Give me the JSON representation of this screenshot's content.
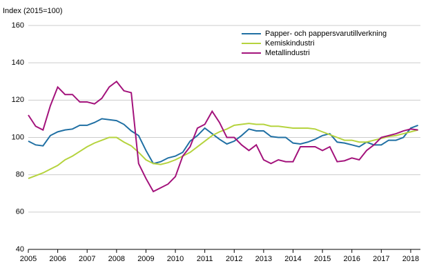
{
  "chart_data": {
    "type": "line",
    "ylabel": "Index (2015=100)",
    "x": [
      2005,
      2005.25,
      2005.5,
      2005.75,
      2006,
      2006.25,
      2006.5,
      2006.75,
      2007,
      2007.25,
      2007.5,
      2007.75,
      2008,
      2008.25,
      2008.5,
      2008.75,
      2009,
      2009.25,
      2009.5,
      2009.75,
      2010,
      2010.25,
      2010.5,
      2010.75,
      2011,
      2011.25,
      2011.5,
      2011.75,
      2012,
      2012.25,
      2012.5,
      2012.75,
      2013,
      2013.25,
      2013.5,
      2013.75,
      2014,
      2014.25,
      2014.5,
      2014.75,
      2015,
      2015.25,
      2015.5,
      2015.75,
      2016,
      2016.25,
      2016.5,
      2016.75,
      2017,
      2017.25,
      2017.5,
      2017.75,
      2018,
      2018.25
    ],
    "series": [
      {
        "name": "Papper- och pappersvarutillverkning",
        "color": "#1f6fa3",
        "values": [
          98,
          96,
          95.5,
          101,
          103,
          104,
          104.5,
          106.5,
          106.5,
          108,
          110,
          109.5,
          109,
          107,
          103.5,
          101,
          93,
          86,
          87,
          89,
          90,
          92,
          98,
          101,
          105,
          102,
          99,
          96.5,
          98,
          101,
          104.5,
          103.5,
          103.5,
          100.5,
          100,
          100,
          97,
          96.5,
          97.5,
          99,
          101,
          102,
          97.5,
          97,
          96,
          95,
          97.5,
          96,
          96,
          98.5,
          98.5,
          100,
          105,
          106.5
        ]
      },
      {
        "name": "Kemiskindustri",
        "color": "#b5d33d",
        "values": [
          78,
          79.5,
          81,
          83,
          85,
          88,
          90,
          92.5,
          95,
          97,
          98.5,
          100,
          100,
          97.5,
          95.5,
          92,
          88,
          86,
          85.5,
          86.5,
          88,
          90,
          92,
          95,
          98,
          101,
          103,
          104.5,
          106.5,
          107,
          107.5,
          107,
          107,
          106,
          106,
          105.5,
          105,
          105,
          105,
          104.5,
          103,
          101.5,
          100,
          98.5,
          98.5,
          97.5,
          97.5,
          98.5,
          99.5,
          100.5,
          101,
          102,
          103,
          104
        ]
      },
      {
        "name": "Metallindustri",
        "color": "#a3127b",
        "values": [
          112,
          106,
          104,
          117,
          127,
          123,
          123,
          119,
          119,
          118,
          121,
          127,
          130,
          125,
          124,
          86,
          78,
          71,
          73,
          75,
          79,
          90,
          95,
          105,
          107,
          114,
          108,
          100,
          100,
          96,
          93,
          96,
          88,
          86,
          88,
          87,
          87,
          95,
          95,
          95,
          93,
          95,
          87,
          87.5,
          89,
          88,
          93,
          96,
          100,
          101,
          102,
          103.5,
          104.5,
          104
        ]
      }
    ],
    "xlim": [
      2005,
      2018.33
    ],
    "ylim": [
      40,
      160
    ],
    "xticks": [
      2005,
      2006,
      2007,
      2008,
      2009,
      2010,
      2011,
      2012,
      2013,
      2014,
      2015,
      2016,
      2017,
      2018
    ],
    "yticks": [
      40,
      60,
      80,
      100,
      120,
      140,
      160
    ],
    "grid": true,
    "legend": "top-right"
  }
}
